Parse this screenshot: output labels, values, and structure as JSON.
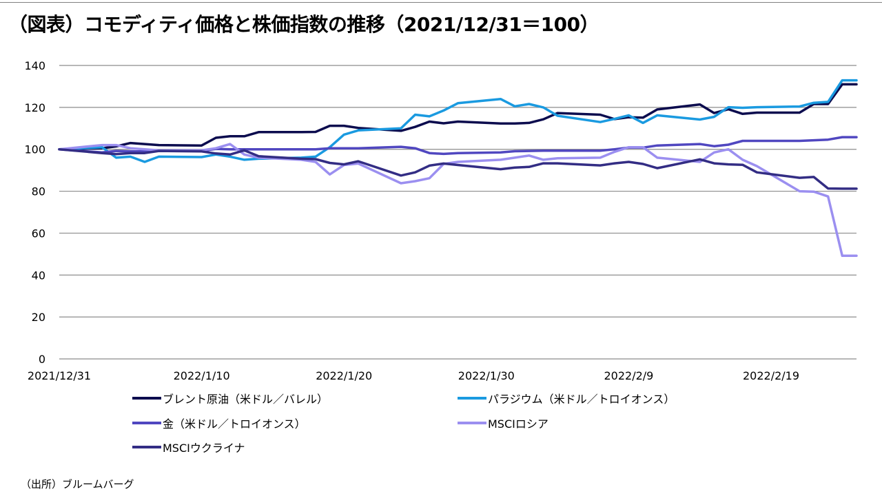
{
  "title": "（図表）コモディティ価格と株価指数の推移（2021/12/31＝100）",
  "source": "（出所）ブルームバーグ",
  "chart_data": {
    "type": "line",
    "title": "（図表）コモディティ価格と株価指数の推移（2021/12/31＝100）",
    "xlabel": "",
    "ylabel": "",
    "ylim": [
      0,
      140
    ],
    "yticks": [
      0,
      20,
      40,
      60,
      80,
      100,
      120,
      140
    ],
    "xlim": [
      "2021/12/31",
      "2022/2/25"
    ],
    "xticks": [
      "2021/12/31",
      "2022/1/10",
      "2022/1/20",
      "2022/1/30",
      "2022/2/9",
      "2022/2/19"
    ],
    "grid": "horizontal",
    "legend_position": "bottom",
    "series": [
      {
        "name": "ブレント原油（米ドル／バレル）",
        "color": "#0c0c4e",
        "x": [
          "2021/12/31",
          "2022/1/3",
          "2022/1/4",
          "2022/1/5",
          "2022/1/6",
          "2022/1/7",
          "2022/1/10",
          "2022/1/11",
          "2022/1/12",
          "2022/1/13",
          "2022/1/14",
          "2022/1/17",
          "2022/1/18",
          "2022/1/19",
          "2022/1/20",
          "2022/1/21",
          "2022/1/24",
          "2022/1/25",
          "2022/1/26",
          "2022/1/27",
          "2022/1/28",
          "2022/1/31",
          "2022/2/1",
          "2022/2/2",
          "2022/2/3",
          "2022/2/4",
          "2022/2/7",
          "2022/2/8",
          "2022/2/9",
          "2022/2/10",
          "2022/2/11",
          "2022/2/14",
          "2022/2/15",
          "2022/2/16",
          "2022/2/17",
          "2022/2/18",
          "2022/2/21",
          "2022/2/22",
          "2022/2/23",
          "2022/2/24",
          "2022/2/25"
        ],
        "values": [
          100,
          100.5,
          101.4,
          103,
          102.5,
          102,
          101.8,
          105.5,
          106.2,
          106.2,
          108.2,
          108.2,
          108.3,
          111.2,
          111.2,
          110.2,
          108.8,
          110.7,
          113.2,
          112.4,
          113.2,
          112.3,
          112.3,
          112.6,
          114.3,
          117.3,
          116.5,
          114.4,
          115.3,
          115.1,
          119,
          121.4,
          117.3,
          119.1,
          116.9,
          117.5,
          117.5,
          121.6,
          121.6,
          131,
          131
        ]
      },
      {
        "name": "パラジウム（米ドル／トロイオンス）",
        "color": "#1a9ae0",
        "x": [
          "2021/12/31",
          "2022/1/3",
          "2022/1/4",
          "2022/1/5",
          "2022/1/6",
          "2022/1/7",
          "2022/1/10",
          "2022/1/11",
          "2022/1/12",
          "2022/1/13",
          "2022/1/14",
          "2022/1/17",
          "2022/1/18",
          "2022/1/19",
          "2022/1/20",
          "2022/1/21",
          "2022/1/24",
          "2022/1/25",
          "2022/1/26",
          "2022/1/27",
          "2022/1/28",
          "2022/1/31",
          "2022/2/1",
          "2022/2/2",
          "2022/2/3",
          "2022/2/4",
          "2022/2/7",
          "2022/2/8",
          "2022/2/9",
          "2022/2/10",
          "2022/2/11",
          "2022/2/14",
          "2022/2/15",
          "2022/2/16",
          "2022/2/17",
          "2022/2/18",
          "2022/2/21",
          "2022/2/22",
          "2022/2/23",
          "2022/2/24",
          "2022/2/25"
        ],
        "values": [
          100,
          101,
          96,
          96.5,
          94,
          96.5,
          96.3,
          97.5,
          96.5,
          95,
          95.5,
          96,
          96.5,
          101,
          107,
          109,
          110,
          116.5,
          115.7,
          118.5,
          122,
          124,
          120.5,
          121.6,
          120,
          116,
          113,
          114.5,
          116.2,
          112.6,
          116.2,
          114.2,
          115.5,
          120.1,
          119.8,
          120.1,
          120.4,
          122.2,
          122.6,
          132.9,
          132.9
        ]
      },
      {
        "name": "金（米ドル／トロイオンス）",
        "color": "#5047c0",
        "x": [
          "2021/12/31",
          "2022/1/3",
          "2022/1/4",
          "2022/1/5",
          "2022/1/6",
          "2022/1/7",
          "2022/1/10",
          "2022/1/11",
          "2022/1/12",
          "2022/1/13",
          "2022/1/14",
          "2022/1/17",
          "2022/1/18",
          "2022/1/19",
          "2022/1/20",
          "2022/1/21",
          "2022/1/24",
          "2022/1/25",
          "2022/1/26",
          "2022/1/27",
          "2022/1/28",
          "2022/1/31",
          "2022/2/1",
          "2022/2/2",
          "2022/2/3",
          "2022/2/4",
          "2022/2/7",
          "2022/2/8",
          "2022/2/9",
          "2022/2/10",
          "2022/2/11",
          "2022/2/14",
          "2022/2/15",
          "2022/2/16",
          "2022/2/17",
          "2022/2/18",
          "2022/2/21",
          "2022/2/22",
          "2022/2/23",
          "2022/2/24",
          "2022/2/25"
        ],
        "values": [
          100,
          98.5,
          99.2,
          99,
          99,
          99.3,
          99.2,
          100.2,
          100,
          100,
          100,
          100,
          100,
          100.5,
          100.5,
          100.5,
          101.2,
          100.5,
          98.2,
          97.8,
          98.2,
          98.5,
          99.1,
          99.2,
          99.3,
          99.3,
          99.3,
          100,
          100.8,
          100.8,
          101.8,
          102.5,
          101.5,
          102.2,
          104,
          104,
          104,
          104.3,
          104.6,
          105.8,
          105.8
        ]
      },
      {
        "name": "MSCIロシア",
        "color": "#9b8ff0",
        "x": [
          "2021/12/31",
          "2022/1/3",
          "2022/1/4",
          "2022/1/5",
          "2022/1/6",
          "2022/1/7",
          "2022/1/10",
          "2022/1/11",
          "2022/1/12",
          "2022/1/13",
          "2022/1/14",
          "2022/1/17",
          "2022/1/18",
          "2022/1/19",
          "2022/1/20",
          "2022/1/21",
          "2022/1/24",
          "2022/1/25",
          "2022/1/26",
          "2022/1/27",
          "2022/1/28",
          "2022/1/31",
          "2022/2/1",
          "2022/2/2",
          "2022/2/3",
          "2022/2/4",
          "2022/2/7",
          "2022/2/8",
          "2022/2/9",
          "2022/2/10",
          "2022/2/11",
          "2022/2/14",
          "2022/2/15",
          "2022/2/16",
          "2022/2/17",
          "2022/2/18",
          "2022/2/21",
          "2022/2/22",
          "2022/2/23",
          "2022/2/24",
          "2022/2/25"
        ],
        "values": [
          100,
          102,
          102,
          100.5,
          100,
          99.5,
          99.5,
          100.5,
          102.5,
          97.5,
          96,
          95,
          94,
          88,
          92.5,
          93.2,
          83.8,
          84.8,
          86.2,
          93,
          94,
          95,
          96,
          97,
          95,
          95.7,
          96,
          98.8,
          101,
          101,
          96,
          94,
          98.5,
          100,
          95,
          92,
          80,
          79.8,
          77.5,
          49.2,
          49.2
        ]
      },
      {
        "name": "MSCIウクライナ",
        "color": "#332d84",
        "x": [
          "2021/12/31",
          "2022/1/3",
          "2022/1/4",
          "2022/1/5",
          "2022/1/6",
          "2022/1/7",
          "2022/1/10",
          "2022/1/11",
          "2022/1/12",
          "2022/1/13",
          "2022/1/14",
          "2022/1/17",
          "2022/1/18",
          "2022/1/19",
          "2022/1/20",
          "2022/1/21",
          "2022/1/24",
          "2022/1/25",
          "2022/1/26",
          "2022/1/27",
          "2022/1/28",
          "2022/1/31",
          "2022/2/1",
          "2022/2/2",
          "2022/2/3",
          "2022/2/4",
          "2022/2/7",
          "2022/2/8",
          "2022/2/9",
          "2022/2/10",
          "2022/2/11",
          "2022/2/14",
          "2022/2/15",
          "2022/2/16",
          "2022/2/17",
          "2022/2/18",
          "2022/2/21",
          "2022/2/22",
          "2022/2/23",
          "2022/2/24",
          "2022/2/25"
        ],
        "values": [
          100,
          98.2,
          97.7,
          98.2,
          98.2,
          99.2,
          99,
          98,
          97.5,
          99.5,
          96.7,
          95.5,
          95.3,
          93.5,
          92.8,
          94.3,
          87.5,
          89,
          92.2,
          93.2,
          92.5,
          90.5,
          91.3,
          91.6,
          93.3,
          93.3,
          92.3,
          93.3,
          94,
          93,
          91,
          95.2,
          93.3,
          92.8,
          92.6,
          89,
          86.4,
          86.8,
          81.3,
          81.2,
          81.2
        ]
      }
    ]
  }
}
